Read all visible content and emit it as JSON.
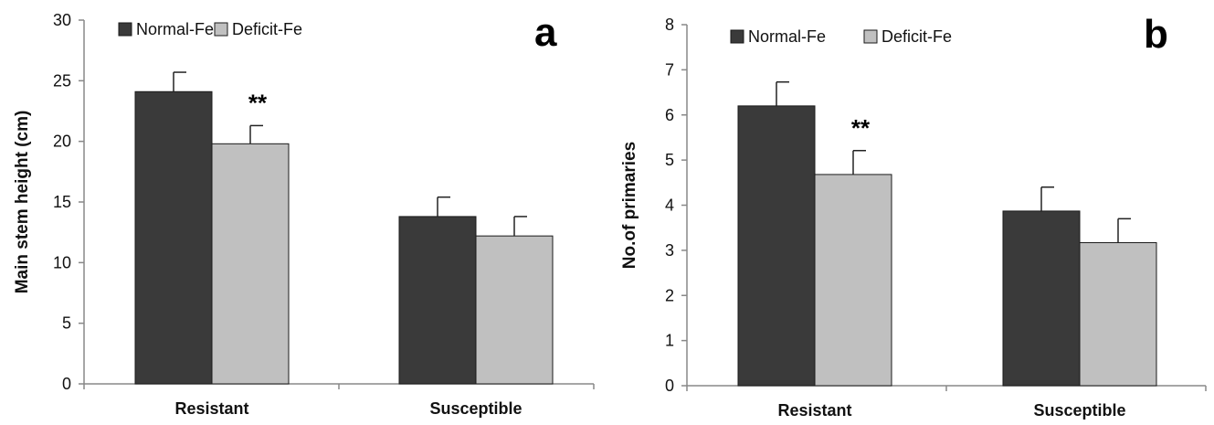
{
  "chart_data": [
    {
      "type": "bar",
      "panel_label": "a",
      "categories": [
        "Resistant",
        "Susceptible"
      ],
      "series": [
        {
          "name": "Normal-Fe",
          "values": [
            24.1,
            13.8
          ],
          "errors": [
            1.6,
            1.6
          ],
          "color": "#3a3a3a"
        },
        {
          "name": "Deficit-Fe",
          "values": [
            19.8,
            12.2
          ],
          "errors": [
            1.5,
            1.6
          ],
          "color": "#c0c0c0"
        }
      ],
      "annotations": [
        {
          "text": "**",
          "category": 0,
          "series": 1
        }
      ],
      "ylabel": "Main stem height (cm)",
      "ylim": [
        0,
        30
      ],
      "yticks": [
        0,
        5,
        10,
        15,
        20,
        25,
        30
      ],
      "legend": "top-left",
      "grid": false
    },
    {
      "type": "bar",
      "panel_label": "b",
      "categories": [
        "Resistant",
        "Susceptible"
      ],
      "series": [
        {
          "name": "Normal-Fe",
          "values": [
            6.2,
            3.87
          ],
          "errors": [
            0.53,
            0.53
          ],
          "color": "#3a3a3a"
        },
        {
          "name": "Deficit-Fe",
          "values": [
            4.68,
            3.17
          ],
          "errors": [
            0.53,
            0.53
          ],
          "color": "#c0c0c0"
        }
      ],
      "annotations": [
        {
          "text": "**",
          "category": 0,
          "series": 1
        }
      ],
      "ylabel": "No.of primaries",
      "ylim": [
        0,
        8
      ],
      "yticks": [
        0,
        1,
        2,
        3,
        4,
        5,
        6,
        7,
        8
      ],
      "legend": "top-left",
      "grid": false
    }
  ]
}
